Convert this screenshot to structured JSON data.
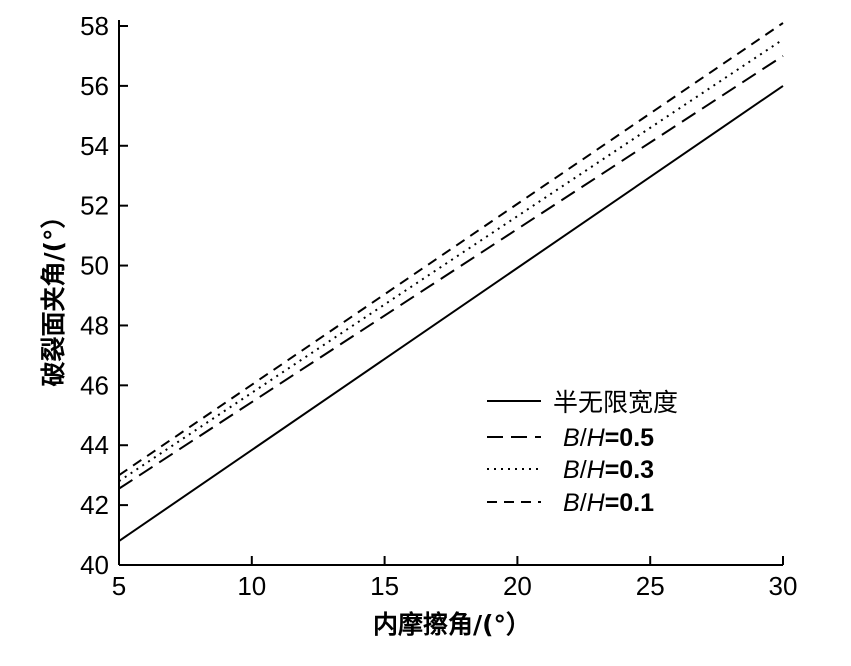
{
  "chart_data": {
    "type": "line",
    "xlabel": "内摩擦角/(°）",
    "ylabel": "破裂面夹角/(°）",
    "xlim": [
      5,
      30
    ],
    "ylim": [
      40,
      58
    ],
    "xticks": [
      5,
      10,
      15,
      20,
      25,
      30
    ],
    "yticks": [
      40,
      42,
      44,
      46,
      48,
      50,
      52,
      54,
      56,
      58
    ],
    "grid": false,
    "legend_position": "bottom-right",
    "series": [
      {
        "name": "半无限宽度",
        "style": "solid",
        "x": [
          5,
          30
        ],
        "y": [
          40.8,
          56.0
        ]
      },
      {
        "name": "B/H=0.5",
        "style": "long-dash",
        "x": [
          5,
          30
        ],
        "y": [
          42.55,
          57.0
        ]
      },
      {
        "name": "B/H=0.3",
        "style": "dotted",
        "x": [
          5,
          30
        ],
        "y": [
          42.8,
          57.55
        ]
      },
      {
        "name": "B/H=0.1",
        "style": "dash",
        "x": [
          5,
          30
        ],
        "y": [
          43.0,
          58.1
        ]
      }
    ],
    "legend": [
      {
        "text": "半无限宽度"
      },
      {
        "italic_1": "B",
        "sep": "/",
        "italic_2": "H",
        "value": "=0.5"
      },
      {
        "italic_1": "B",
        "sep": "/",
        "italic_2": "H",
        "value": "=0.3"
      },
      {
        "italic_1": "B",
        "sep": "/",
        "italic_2": "H",
        "value": "=0.1"
      }
    ]
  }
}
